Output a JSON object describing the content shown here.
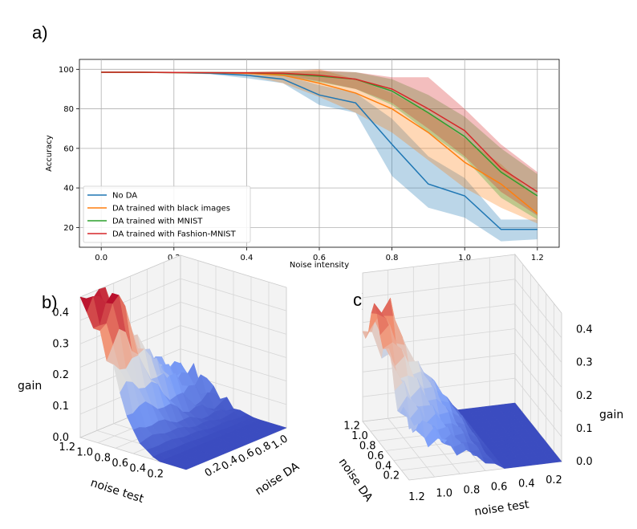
{
  "panels": {
    "a": "a)",
    "b": "b)",
    "c": "c)"
  },
  "chart_data": [
    {
      "type": "line",
      "panel": "a)",
      "title": "",
      "xlabel": "Noise intensity",
      "ylabel": "Accuracy",
      "xlim": [
        -0.06,
        1.26
      ],
      "ylim": [
        10,
        105
      ],
      "grid": true,
      "legend_position": "lower-left",
      "xticks": [
        "0.0",
        "0.2",
        "0.4",
        "0.6",
        "0.8",
        "1.0",
        "1.2"
      ],
      "yticks": [
        "20",
        "40",
        "60",
        "80",
        "100"
      ],
      "x": [
        0.0,
        0.1,
        0.2,
        0.3,
        0.4,
        0.5,
        0.6,
        0.7,
        0.8,
        0.9,
        1.0,
        1.1,
        1.2
      ],
      "series": [
        {
          "name": "No DA",
          "color": "#1f77b4",
          "mean": [
            98.5,
            98.5,
            98.3,
            98.0,
            97.0,
            95.0,
            87.0,
            83.0,
            62.0,
            42.0,
            36.0,
            19.0,
            19.0
          ],
          "lower": [
            98.3,
            98.3,
            98.0,
            97.5,
            95.5,
            93.0,
            82.0,
            78.0,
            46.0,
            30.0,
            25.0,
            13.0,
            14.0
          ],
          "upper": [
            98.7,
            98.7,
            98.6,
            98.4,
            98.2,
            97.0,
            92.0,
            88.0,
            75.0,
            56.0,
            45.0,
            24.0,
            24.0
          ]
        },
        {
          "name": "DA trained with black images",
          "color": "#ff7f0e",
          "mean": [
            98.5,
            98.5,
            98.3,
            98.2,
            98.0,
            97.0,
            93.0,
            88.0,
            80.0,
            68.0,
            53.0,
            42.0,
            27.0
          ],
          "lower": [
            98.3,
            98.3,
            98.0,
            97.8,
            97.0,
            93.0,
            86.0,
            78.0,
            68.0,
            54.0,
            40.0,
            30.0,
            22.0
          ],
          "upper": [
            98.7,
            98.7,
            98.6,
            98.5,
            98.7,
            99.0,
            100.0,
            95.0,
            88.0,
            78.0,
            65.0,
            52.0,
            35.0
          ]
        },
        {
          "name": "DA trained with MNIST",
          "color": "#2ca02c",
          "mean": [
            98.5,
            98.5,
            98.4,
            98.3,
            98.2,
            97.8,
            96.5,
            95.0,
            89.0,
            78.0,
            66.0,
            48.0,
            36.0
          ],
          "lower": [
            98.3,
            98.3,
            98.2,
            98.0,
            97.8,
            96.5,
            93.5,
            90.0,
            82.0,
            68.0,
            55.0,
            35.0,
            24.0
          ],
          "upper": [
            98.7,
            98.7,
            98.6,
            98.6,
            98.6,
            98.8,
            99.0,
            98.5,
            95.0,
            87.0,
            76.0,
            60.0,
            47.0
          ]
        },
        {
          "name": "DA trained with Fashion-MNIST",
          "color": "#d62728",
          "mean": [
            98.5,
            98.5,
            98.4,
            98.3,
            98.2,
            98.0,
            97.0,
            95.0,
            90.0,
            80.0,
            69.0,
            50.0,
            38.0
          ],
          "lower": [
            98.3,
            98.3,
            98.2,
            98.0,
            97.8,
            96.8,
            94.0,
            90.0,
            83.0,
            70.0,
            56.0,
            38.0,
            26.0
          ],
          "upper": [
            98.7,
            98.7,
            98.6,
            98.6,
            98.6,
            99.0,
            99.5,
            98.5,
            96.0,
            96.0,
            80.0,
            62.0,
            48.0
          ]
        }
      ]
    },
    {
      "type": "surface3d",
      "panel": "b)",
      "zlabel": "gain",
      "xlabel": "noise test",
      "ylabel": "noise DA",
      "xticks": [
        "0.2",
        "0.4",
        "0.6",
        "0.8",
        "1.0",
        "1.2"
      ],
      "yticks": [
        "0.2",
        "0.4",
        "0.6",
        "0.8",
        "1.0"
      ],
      "zticks": [
        "0.0",
        "0.1",
        "0.2",
        "0.3",
        "0.4"
      ],
      "noise_test": [
        0.0,
        0.1,
        0.2,
        0.3,
        0.4,
        0.5,
        0.6,
        0.7,
        0.8,
        0.9,
        1.0,
        1.1,
        1.2
      ],
      "noise_DA": [
        0.0,
        0.1,
        0.2,
        0.3,
        0.4,
        0.5,
        0.6,
        0.7,
        0.8,
        0.9,
        1.0,
        1.1,
        1.2
      ],
      "gain_profile_by_noise_test": [
        0.0,
        0.0,
        0.0,
        0.0,
        0.01,
        0.03,
        0.06,
        0.12,
        0.2,
        0.26,
        0.3,
        0.35,
        0.38
      ],
      "gain_max": 0.45,
      "colormap": "coolwarm"
    },
    {
      "type": "surface3d",
      "panel": "c)",
      "zlabel": "gain",
      "xlabel": "noise test",
      "ylabel": "noise DA",
      "xticks": [
        "1.2",
        "1.0",
        "0.8",
        "0.6",
        "0.4",
        "0.2"
      ],
      "yticks": [
        "1.2",
        "1.0",
        "0.8",
        "0.6",
        "0.4",
        "0.2"
      ],
      "zticks": [
        "0.0",
        "0.1",
        "0.2",
        "0.3",
        "0.4"
      ],
      "gain_max": 0.45,
      "colormap": "coolwarm"
    }
  ]
}
